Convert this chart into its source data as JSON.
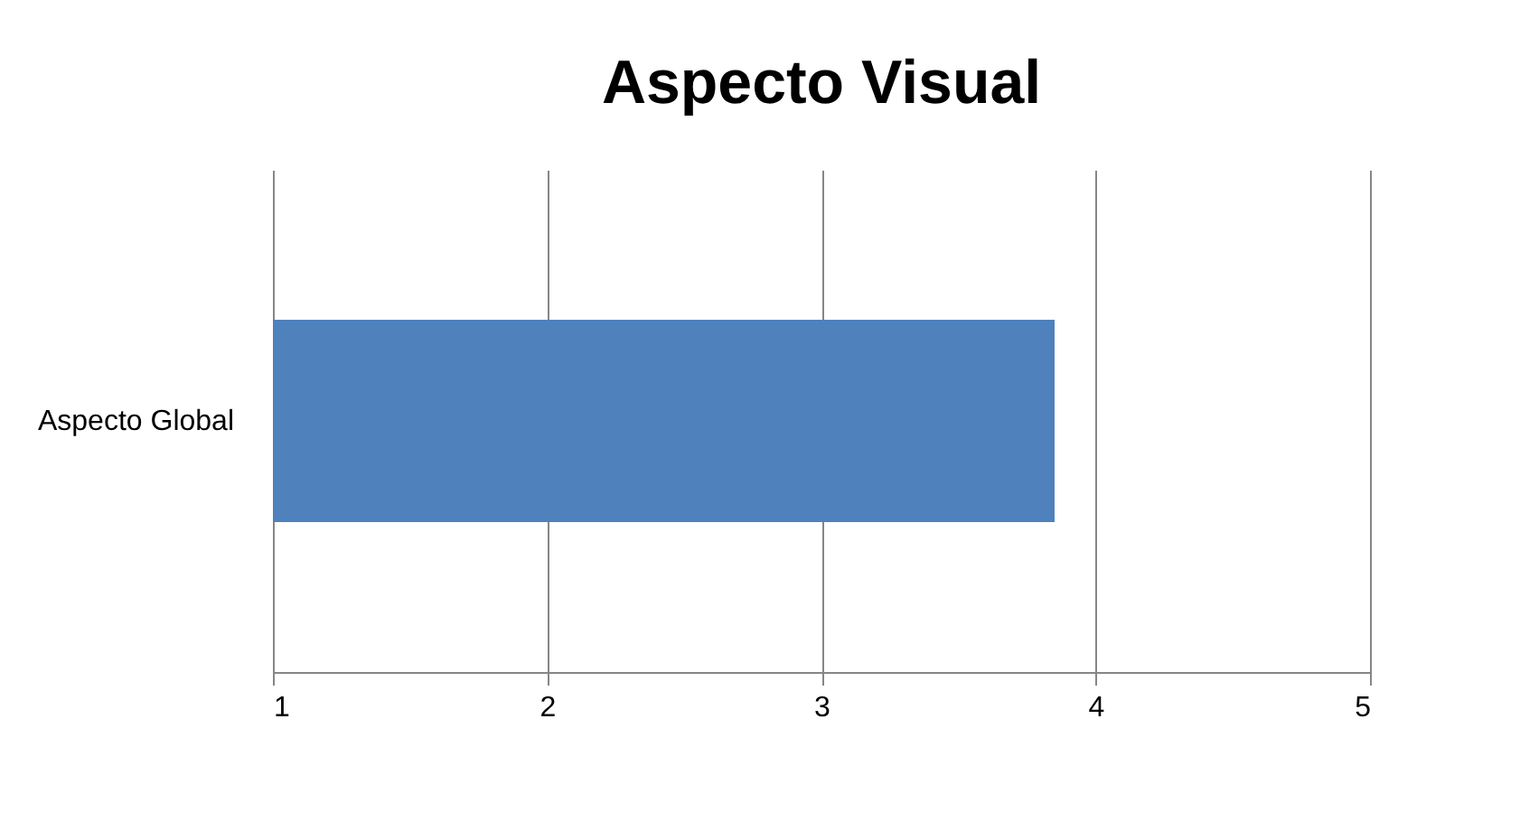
{
  "chart_data": {
    "type": "bar",
    "orientation": "horizontal",
    "title": "Aspecto Visual",
    "categories": [
      "Aspecto Global"
    ],
    "series": [
      {
        "color": "#4f81bd",
        "values": [
          3.85
        ]
      }
    ],
    "xlim": [
      1,
      5
    ],
    "xticks": [
      1,
      2,
      3,
      4,
      5
    ],
    "grid": "x",
    "legend": false
  }
}
